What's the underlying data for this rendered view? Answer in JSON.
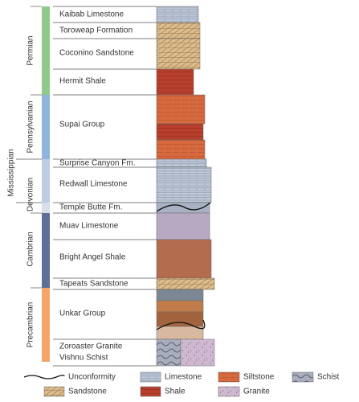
{
  "periods": [
    {
      "label": "Permian"
    },
    {
      "label": "Pennsylvanian"
    },
    {
      "label": "Mississippian"
    },
    {
      "label": "Devonian"
    },
    {
      "label": "Cambrian"
    },
    {
      "label": "Precambrian"
    }
  ],
  "formations": [
    {
      "label": "Kaibab Limestone"
    },
    {
      "label": "Toroweap Formation"
    },
    {
      "label": "Coconino Sandstone"
    },
    {
      "label": "Hermit Shale"
    },
    {
      "label": "Supai Group"
    },
    {
      "label": "Surprise Canyon Fm."
    },
    {
      "label": "Redwall Limestone"
    },
    {
      "label": "Temple Butte Fm."
    },
    {
      "label": "Muav Limestone"
    },
    {
      "label": "Bright Angel Shale"
    },
    {
      "label": "Tapeats Sandstone"
    },
    {
      "label": "Unkar Group"
    },
    {
      "label": "Zoroaster Granite"
    },
    {
      "label": "Vishnu Schist"
    }
  ],
  "legend": [
    {
      "label": "Unconformity"
    },
    {
      "label": "Limestone"
    },
    {
      "label": "Siltstone"
    },
    {
      "label": "Schist"
    },
    {
      "label": "Sandstone"
    },
    {
      "label": "Shale"
    },
    {
      "label": "Granite"
    }
  ]
}
